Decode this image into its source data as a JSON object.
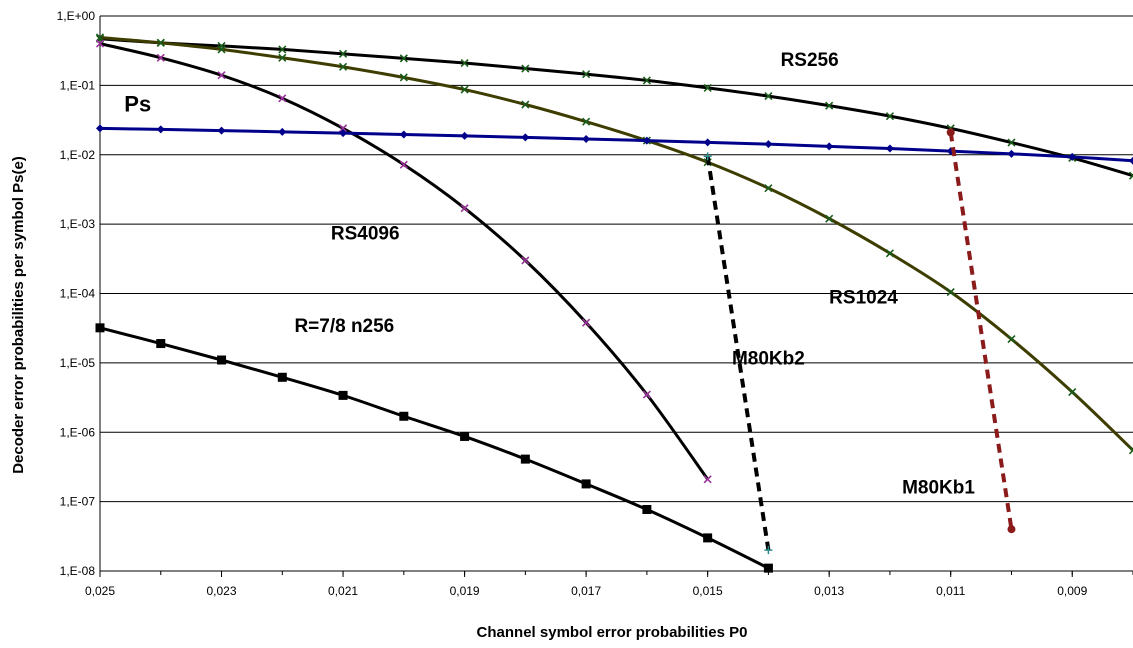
{
  "chart_data": {
    "type": "line",
    "title": "",
    "xlabel": "Channel symbol error probabilities P0",
    "ylabel": "Decoder error probabilities per symbol Ps(e)",
    "x_reversed": true,
    "xlim": [
      0.025,
      0.008
    ],
    "ylog": true,
    "ylim": [
      1e-08,
      1
    ],
    "grid": "horizontal",
    "x_ticks": [
      0.025,
      0.023,
      0.021,
      0.019,
      0.017,
      0.015,
      0.013,
      0.011,
      0.009
    ],
    "x_tick_labels": [
      "0,025",
      "0,023",
      "0,021",
      "0,019",
      "0,017",
      "0,015",
      "0,013",
      "0,011",
      "0,009"
    ],
    "y_ticks": [
      1,
      0.1,
      0.01,
      0.001,
      0.0001,
      1e-05,
      1e-06,
      1e-07,
      1e-08
    ],
    "y_tick_labels": [
      "1,E+00",
      "1,E-01",
      "1,E-02",
      "1,E-03",
      "1,E-04",
      "1,E-05",
      "1,E-06",
      "1,E-07",
      "1,E-08"
    ],
    "series": [
      {
        "name": "RS256",
        "color": "#000000",
        "width": 3,
        "dash": "",
        "marker": "x",
        "marker_color": "#1a5c1a",
        "x": [
          0.025,
          0.024,
          0.023,
          0.022,
          0.021,
          0.02,
          0.019,
          0.018,
          0.017,
          0.016,
          0.015,
          0.014,
          0.013,
          0.012,
          0.011,
          0.01,
          0.009,
          0.008
        ],
        "y": [
          0.47,
          0.41,
          0.37,
          0.33,
          0.285,
          0.245,
          0.21,
          0.175,
          0.145,
          0.118,
          0.092,
          0.07,
          0.051,
          0.036,
          0.024,
          0.015,
          0.009,
          0.005
        ]
      },
      {
        "name": "RS1024",
        "color": "#3d3d00",
        "width": 3,
        "dash": "",
        "marker": "x",
        "marker_color": "#1a5c1a",
        "x": [
          0.025,
          0.024,
          0.023,
          0.022,
          0.021,
          0.02,
          0.019,
          0.018,
          0.017,
          0.016,
          0.015,
          0.014,
          0.013,
          0.012,
          0.011,
          0.01,
          0.009,
          0.008
        ],
        "y": [
          0.49,
          0.41,
          0.33,
          0.25,
          0.185,
          0.13,
          0.087,
          0.053,
          0.03,
          0.016,
          0.0078,
          0.0033,
          0.0012,
          0.00038,
          0.000105,
          2.2e-05,
          3.8e-06,
          5.5e-07
        ]
      },
      {
        "name": "RS4096",
        "color": "#000000",
        "width": 3,
        "dash": "",
        "marker": "x",
        "marker_color": "#993399",
        "x": [
          0.025,
          0.024,
          0.023,
          0.022,
          0.021,
          0.02,
          0.019,
          0.018,
          0.017,
          0.016,
          0.015
        ],
        "y": [
          0.4,
          0.25,
          0.14,
          0.065,
          0.024,
          0.0072,
          0.0017,
          0.0003,
          3.8e-05,
          3.5e-06,
          2.1e-07
        ]
      },
      {
        "name": "Ps",
        "color": "#00008b",
        "width": 3,
        "dash": "",
        "marker": "diamond",
        "marker_color": "#00008b",
        "x": [
          0.025,
          0.024,
          0.023,
          0.022,
          0.021,
          0.02,
          0.019,
          0.018,
          0.017,
          0.016,
          0.015,
          0.014,
          0.013,
          0.012,
          0.011,
          0.01,
          0.009,
          0.008
        ],
        "y": [
          0.024,
          0.0232,
          0.0223,
          0.0214,
          0.0205,
          0.0196,
          0.0187,
          0.0178,
          0.0169,
          0.016,
          0.0151,
          0.0142,
          0.0132,
          0.0123,
          0.0113,
          0.0103,
          0.0093,
          0.0082
        ]
      },
      {
        "name": "R=7/8 n256",
        "color": "#000000",
        "width": 3,
        "dash": "",
        "marker": "square",
        "marker_color": "#000000",
        "x": [
          0.025,
          0.024,
          0.023,
          0.022,
          0.021,
          0.02,
          0.019,
          0.018,
          0.017,
          0.016,
          0.015,
          0.014
        ],
        "y": [
          3.2e-05,
          1.9e-05,
          1.1e-05,
          6.2e-06,
          3.4e-06,
          1.7e-06,
          8.7e-07,
          4.1e-07,
          1.8e-07,
          7.7e-08,
          3e-08,
          1.1e-08
        ]
      },
      {
        "name": "M80Kb2",
        "color": "#000000",
        "width": 4,
        "dash": "9,6",
        "marker": "plus",
        "marker_color": "#2e8b8b",
        "x": [
          0.015,
          0.014
        ],
        "y": [
          0.0095,
          2e-08
        ]
      },
      {
        "name": "M80Kb1",
        "color": "#8b1a1a",
        "width": 4,
        "dash": "9,6",
        "marker": "circle",
        "marker_color": "#8b1a1a",
        "x": [
          0.011,
          0.01
        ],
        "y": [
          0.021,
          4e-08
        ]
      }
    ],
    "annotations": [
      {
        "text": "RS256",
        "x": 0.0138,
        "y": 0.19,
        "size": 19
      },
      {
        "text": "Ps",
        "x": 0.0246,
        "y": 0.042,
        "size": 22
      },
      {
        "text": "RS4096",
        "x": 0.0212,
        "y": 0.0006,
        "size": 19
      },
      {
        "text": "RS1024",
        "x": 0.013,
        "y": 7.2e-05,
        "size": 19
      },
      {
        "text": "R=7/8  n256",
        "x": 0.0218,
        "y": 2.8e-05,
        "size": 19
      },
      {
        "text": "M80Kb2",
        "x": 0.0146,
        "y": 9.5e-06,
        "size": 19
      },
      {
        "text": "M80Kb1",
        "x": 0.0118,
        "y": 1.3e-07,
        "size": 19
      }
    ]
  }
}
